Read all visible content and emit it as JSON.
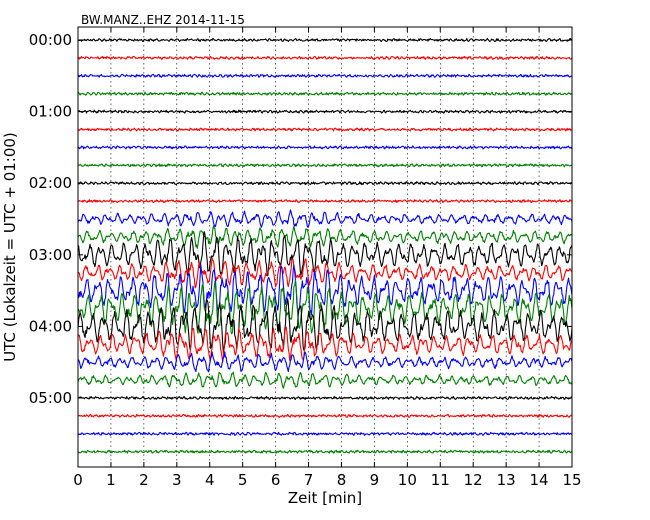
{
  "chart_data": {
    "type": "line",
    "title": "BW.MANZ..EHZ 2014-11-15",
    "xlabel": "Zeit  [min]",
    "ylabel": "UTC (Lokalzeit = UTC + 01:00)",
    "xlim": [
      0,
      15
    ],
    "x_ticks": [
      "0",
      "1",
      "2",
      "3",
      "4",
      "5",
      "6",
      "7",
      "8",
      "9",
      "10",
      "11",
      "12",
      "13",
      "14",
      "15"
    ],
    "y_ticks": [
      "00:00",
      "01:00",
      "02:00",
      "03:00",
      "04:00",
      "05:00"
    ],
    "grid": "vertical dotted lines at each minute",
    "trace_interval_min": 15,
    "trace_colors": [
      "#000000",
      "#ff0000",
      "#0000ff",
      "#008000"
    ],
    "trace_count": 24,
    "event": {
      "trace_indices": [
        10,
        11,
        12,
        13,
        14,
        15,
        16,
        17,
        18,
        19
      ],
      "time_range_min": [
        0,
        15
      ],
      "peak_minutes": [
        4,
        6.5
      ]
    }
  }
}
